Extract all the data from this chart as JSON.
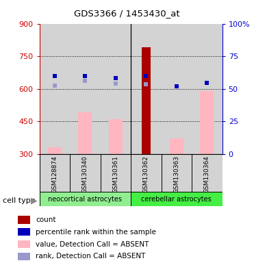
{
  "title": "GDS3366 / 1453430_at",
  "samples": [
    "GSM128874",
    "GSM130340",
    "GSM130361",
    "GSM130362",
    "GSM130363",
    "GSM130364"
  ],
  "ylim_left": [
    300,
    900
  ],
  "ylim_right": [
    0,
    100
  ],
  "yticks_left": [
    300,
    450,
    600,
    750,
    900
  ],
  "yticks_right": [
    0,
    25,
    50,
    75,
    100
  ],
  "ytick_right_labels": [
    "0",
    "25",
    "50",
    "75",
    "100%"
  ],
  "pink_bars": [
    330,
    490,
    460,
    null,
    370,
    590
  ],
  "dark_red_bar": [
    null,
    null,
    null,
    790,
    null,
    null
  ],
  "blue_squares_left": [
    660,
    660,
    650,
    660,
    610,
    628
  ],
  "lavender_squares_left": [
    615,
    638,
    625,
    620,
    610,
    628
  ],
  "bg_color": "#D3D3D3",
  "pink_color": "#FFB6C1",
  "dark_red_color": "#AA0000",
  "blue_color": "#0000BB",
  "lavender_color": "#9999CC",
  "left_axis_color": "#CC0000",
  "right_axis_color": "#0000CC",
  "neocortical_color": "#90EE90",
  "cerebellar_color": "#44EE44",
  "group_separator": 2.5,
  "grid_yticks": [
    450,
    600,
    750
  ],
  "legend_items": [
    [
      "#AA0000",
      "count"
    ],
    [
      "#0000BB",
      "percentile rank within the sample"
    ],
    [
      "#FFB6C1",
      "value, Detection Call = ABSENT"
    ],
    [
      "#9999CC",
      "rank, Detection Call = ABSENT"
    ]
  ]
}
